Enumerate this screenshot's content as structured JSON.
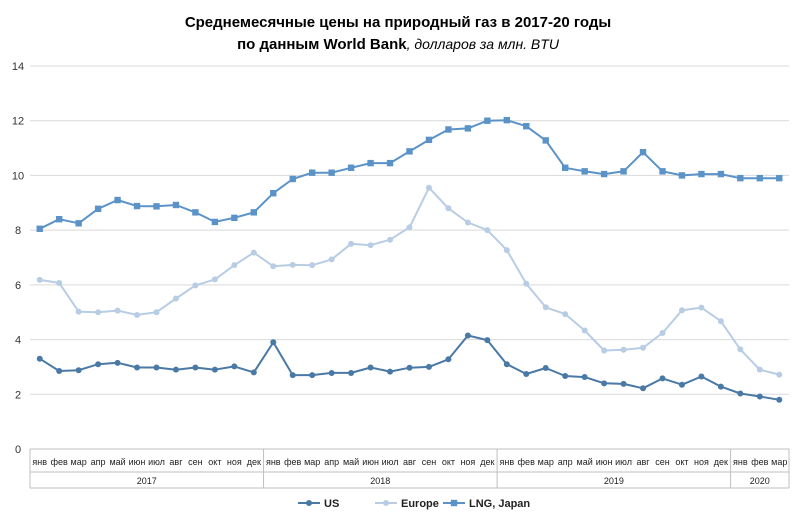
{
  "chart_data": {
    "type": "line",
    "title": "Среднемесячные  цены на  природный  газ в 2017-20 годы",
    "subtitle_bold": "по данным  World Bank",
    "subtitle_italic": ", долларов за млн. BTU",
    "ylim": [
      0,
      14
    ],
    "yticks": [
      "0",
      "2",
      "4",
      "6",
      "8",
      "10",
      "12",
      "14"
    ],
    "grid": true,
    "legend_position": "bottom",
    "categories": [
      "янв",
      "фев",
      "мар",
      "апр",
      "май",
      "июн",
      "июл",
      "авг",
      "сен",
      "окт",
      "ноя",
      "дек",
      "янв",
      "фев",
      "мар",
      "апр",
      "май",
      "июн",
      "июл",
      "авг",
      "сен",
      "окт",
      "ноя",
      "дек",
      "янв",
      "фев",
      "мар",
      "апр",
      "май",
      "июн",
      "июл",
      "авг",
      "сен",
      "окт",
      "ноя",
      "дек",
      "янв",
      "фев",
      "мар"
    ],
    "years": [
      {
        "label": "2017",
        "months": 12
      },
      {
        "label": "2018",
        "months": 12
      },
      {
        "label": "2019",
        "months": 12
      },
      {
        "label": "2020",
        "months": 3
      }
    ],
    "series": [
      {
        "name": "US",
        "color": "#4a79a6",
        "marker": "circle",
        "values": [
          3.3,
          2.85,
          2.88,
          3.1,
          3.15,
          2.98,
          2.98,
          2.9,
          2.98,
          2.9,
          3.02,
          2.8,
          3.9,
          2.7,
          2.7,
          2.78,
          2.78,
          2.98,
          2.83,
          2.97,
          3.0,
          3.28,
          4.15,
          3.98,
          3.1,
          2.74,
          2.96,
          2.67,
          2.63,
          2.4,
          2.38,
          2.22,
          2.58,
          2.35,
          2.65,
          2.28,
          2.03,
          1.92,
          1.8
        ]
      },
      {
        "name": "Europe",
        "color": "#b8cde4",
        "marker": "circle",
        "values": [
          6.18,
          6.07,
          5.02,
          5.0,
          5.06,
          4.9,
          5.0,
          5.5,
          5.98,
          6.2,
          6.72,
          7.18,
          6.68,
          6.73,
          6.72,
          6.93,
          7.5,
          7.45,
          7.65,
          8.1,
          9.55,
          8.8,
          8.28,
          8.0,
          7.27,
          6.04,
          5.18,
          4.93,
          4.33,
          3.6,
          3.63,
          3.7,
          4.24,
          5.07,
          5.17,
          4.67,
          3.64,
          2.9,
          2.72
        ]
      },
      {
        "name": "LNG, Japan",
        "color": "#5b93c8",
        "marker": "square",
        "values": [
          8.05,
          8.4,
          8.25,
          8.78,
          9.1,
          8.88,
          8.87,
          8.92,
          8.65,
          8.3,
          8.45,
          8.65,
          9.35,
          9.87,
          10.1,
          10.1,
          10.28,
          10.45,
          10.45,
          10.88,
          11.3,
          11.68,
          11.72,
          12.0,
          12.02,
          11.8,
          11.28,
          10.28,
          10.15,
          10.05,
          10.15,
          10.85,
          10.15,
          10.0,
          10.05,
          10.05,
          9.9,
          9.9,
          9.9
        ]
      }
    ]
  }
}
